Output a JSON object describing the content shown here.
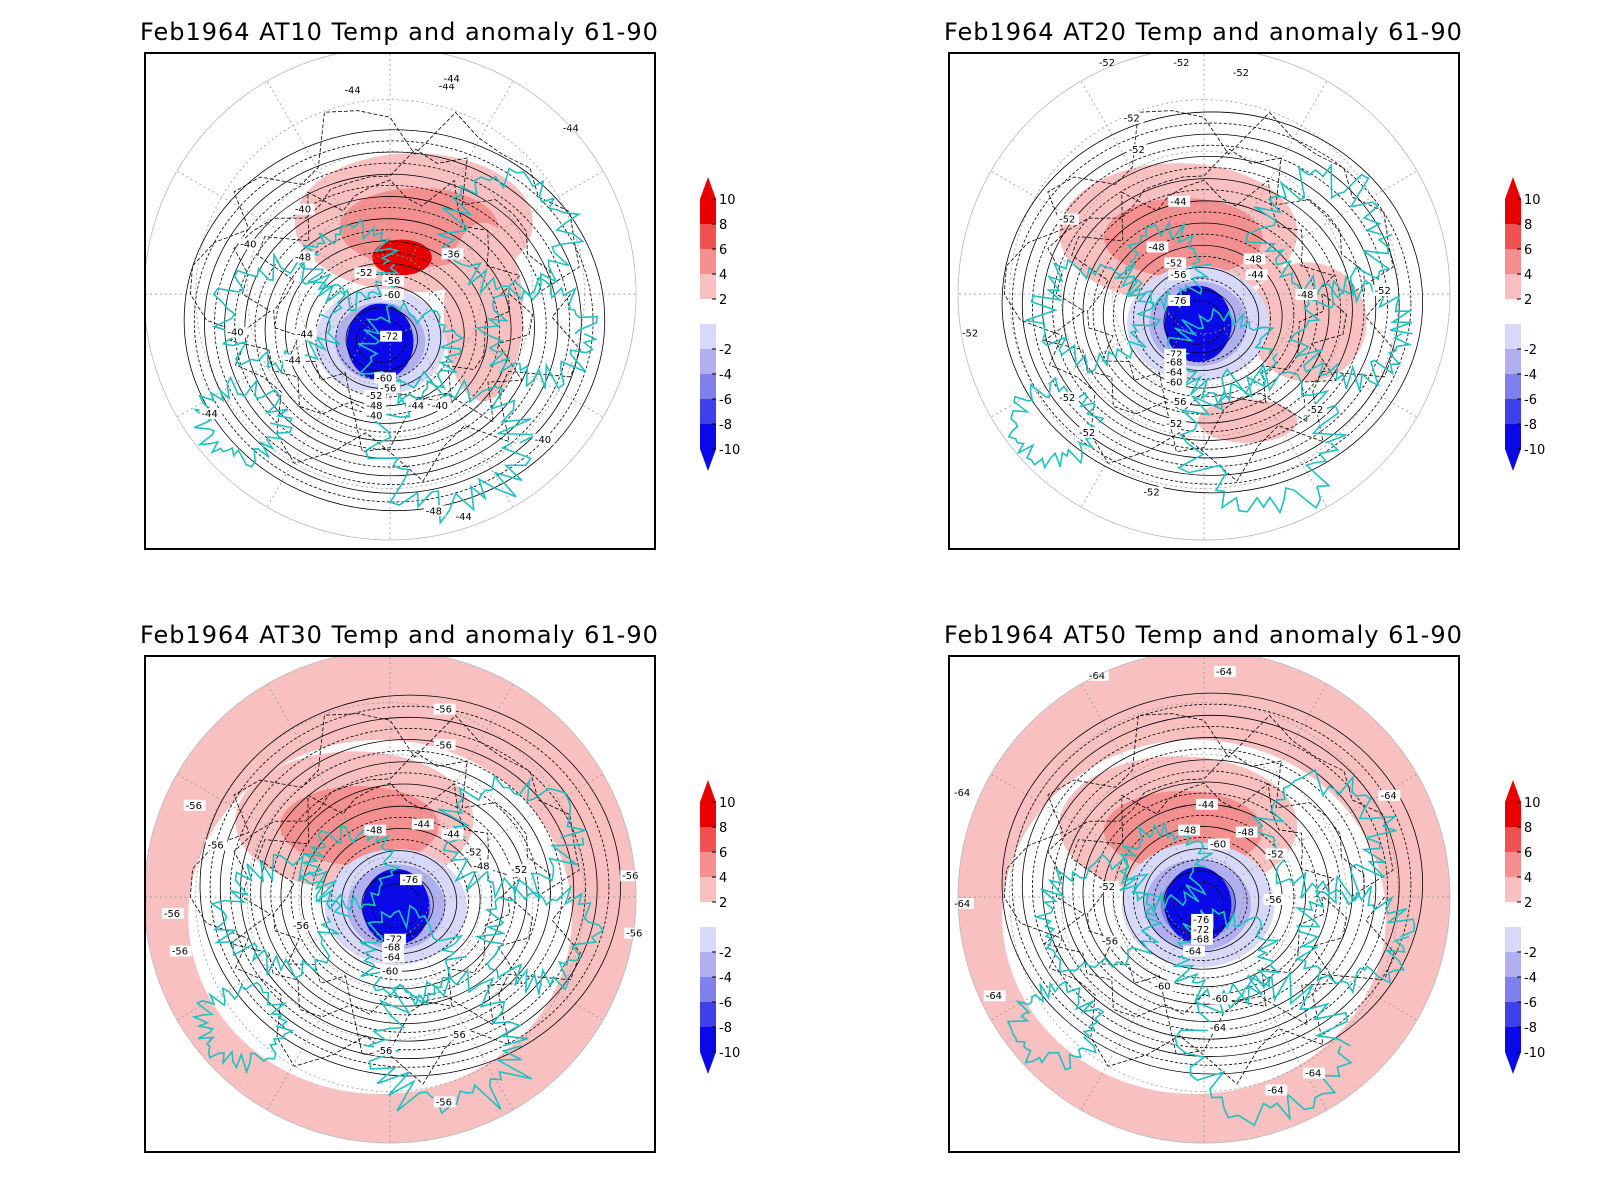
{
  "panels": [
    {
      "title": "Feb1964 AT10 Temp and anomaly 61-90",
      "contour_labels": [
        "-44",
        "-44",
        "-44",
        "-44",
        "-44",
        "-40",
        "-36",
        "-40",
        "-52",
        "-56",
        "-60",
        "-72",
        "-60",
        "-56",
        "-52",
        "-48",
        "-44",
        "-40",
        "-40",
        "-44",
        "-40",
        "-44",
        "-48",
        "-44",
        "-48",
        "-40"
      ]
    },
    {
      "title": "Feb1964 AT20 Temp and anomaly 61-90",
      "contour_labels": [
        "-52",
        "-52",
        "-52",
        "-52",
        "-52",
        "-52",
        "-44",
        "-48",
        "-52",
        "-56",
        "-76",
        "-72",
        "-68",
        "-64",
        "-60",
        "-56",
        "-52",
        "-48",
        "-44",
        "-48",
        "-52",
        "-52",
        "-52",
        "-52",
        "-52",
        "-52"
      ]
    },
    {
      "title": "Feb1964 AT30 Temp and anomaly 61-90",
      "contour_labels": [
        "-56",
        "-56",
        "-56",
        "-56",
        "-48",
        "-44",
        "-44",
        "-52",
        "-48",
        "-52",
        "-76",
        "-72",
        "-68",
        "-64",
        "-60",
        "-56",
        "-56",
        "-56",
        "-56",
        "-56",
        "-56",
        "-52",
        "-56",
        "-56"
      ]
    },
    {
      "title": "Feb1964 AT50 Temp and anomaly 61-90",
      "contour_labels": [
        "-64",
        "-64",
        "-64",
        "-64",
        "-44",
        "-48",
        "-48",
        "-60",
        "-52",
        "-52",
        "-56",
        "-56",
        "-76",
        "-72",
        "-68",
        "-64",
        "-60",
        "-60",
        "-64",
        "-64",
        "-64",
        "-64",
        "-64"
      ]
    }
  ],
  "colorbar": {
    "levels": [
      "10",
      "8",
      "6",
      "4",
      "2",
      "-2",
      "-4",
      "-6",
      "-8",
      "-10"
    ],
    "colors": [
      "#e80000",
      "#f05050",
      "#f49090",
      "#f8c0c0",
      "#ffffff",
      "#d8d8f8",
      "#b0b0f0",
      "#8080ec",
      "#4040ea",
      "#0a0ae8"
    ]
  }
}
